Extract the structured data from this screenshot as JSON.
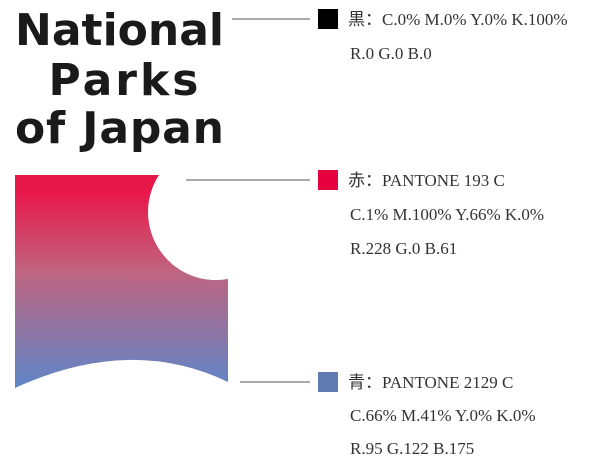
{
  "logo": {
    "lines": [
      "National",
      "Parks",
      "of Japan"
    ]
  },
  "colors": [
    {
      "color": "#000000",
      "lines": [
        "黒：C.0% M.0% Y.0% K.100%",
        "R.0 G.0 B.0"
      ]
    },
    {
      "color": "#e4003d",
      "lines": [
        "赤：PANTONE 193 C",
        "C.1% M.100% Y.66% K.0%",
        "R.228 G.0 B.61"
      ]
    },
    {
      "color": "#5f7aaf",
      "lines": [
        "青：PANTONE 2129 C",
        "C.66% M.41% Y.0% K.0%",
        "R.95 G.122 B.175"
      ]
    }
  ]
}
